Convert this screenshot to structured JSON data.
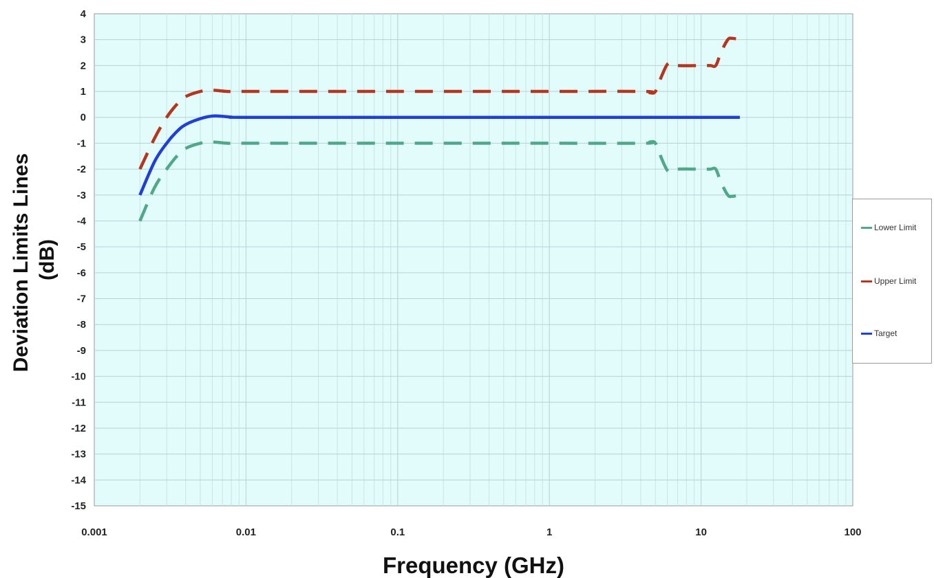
{
  "chart_data": {
    "type": "line",
    "xlabel": "Frequency (GHz)",
    "ylabel_lines": [
      "Deviation Limits Lines",
      "(dB)"
    ],
    "x_scale": "log",
    "xlim": [
      0.001,
      100
    ],
    "ylim": [
      -15,
      4
    ],
    "x_tick_labels": [
      "0.001",
      "0.01",
      "0.1",
      "1",
      "10",
      "100"
    ],
    "x_tick_values": [
      0.001,
      0.01,
      0.1,
      1,
      10,
      100
    ],
    "y_tick_values": [
      4,
      3,
      2,
      1,
      0,
      -1,
      -2,
      -3,
      -4,
      -5,
      -6,
      -7,
      -8,
      -9,
      -10,
      -11,
      -12,
      -13,
      -14,
      -15
    ],
    "grid": true,
    "background": "#e2fbfb",
    "legend_position": "right",
    "series": [
      {
        "name": "Lower Limit",
        "color": "#4fa888",
        "style": "dashed",
        "points": [
          [
            0.002,
            -4
          ],
          [
            0.0025,
            -2.7
          ],
          [
            0.003,
            -2
          ],
          [
            0.0035,
            -1.5
          ],
          [
            0.004,
            -1.2
          ],
          [
            0.005,
            -1
          ],
          [
            0.006,
            -0.95
          ],
          [
            0.0075,
            -1
          ],
          [
            0.01,
            -1
          ],
          [
            0.1,
            -1
          ],
          [
            1,
            -1
          ],
          [
            4.2,
            -1
          ],
          [
            4.6,
            -0.95
          ],
          [
            5,
            -1
          ],
          [
            5.5,
            -1.6
          ],
          [
            6,
            -2.05
          ],
          [
            6.5,
            -2.1
          ],
          [
            7,
            -2
          ],
          [
            10,
            -2
          ],
          [
            11.5,
            -2
          ],
          [
            12.5,
            -2
          ],
          [
            13.5,
            -2.5
          ],
          [
            15,
            -3
          ],
          [
            16,
            -3.05
          ],
          [
            18,
            -3
          ]
        ]
      },
      {
        "name": "Upper Limit",
        "color": "#b5361c",
        "style": "dashed",
        "points": [
          [
            0.002,
            -2
          ],
          [
            0.0025,
            -0.8
          ],
          [
            0.003,
            0
          ],
          [
            0.0035,
            0.5
          ],
          [
            0.004,
            0.8
          ],
          [
            0.005,
            1
          ],
          [
            0.006,
            1.05
          ],
          [
            0.0075,
            1
          ],
          [
            0.01,
            1
          ],
          [
            0.1,
            1
          ],
          [
            1,
            1
          ],
          [
            4.2,
            1
          ],
          [
            4.6,
            0.95
          ],
          [
            5,
            1
          ],
          [
            5.5,
            1.6
          ],
          [
            6,
            2.05
          ],
          [
            6.5,
            2.1
          ],
          [
            7,
            2
          ],
          [
            10,
            2
          ],
          [
            11.5,
            2
          ],
          [
            12.5,
            2
          ],
          [
            13.5,
            2.5
          ],
          [
            15,
            3
          ],
          [
            16,
            3.05
          ],
          [
            18,
            3
          ]
        ]
      },
      {
        "name": "Target",
        "color": "#1f3fd6",
        "style": "solid",
        "points": [
          [
            0.002,
            -3
          ],
          [
            0.0025,
            -1.7
          ],
          [
            0.003,
            -1
          ],
          [
            0.0035,
            -0.55
          ],
          [
            0.004,
            -0.28
          ],
          [
            0.005,
            -0.05
          ],
          [
            0.006,
            0.05
          ],
          [
            0.007,
            0.04
          ],
          [
            0.008,
            0.01
          ],
          [
            0.01,
            0
          ],
          [
            0.1,
            0
          ],
          [
            1,
            0
          ],
          [
            10,
            0
          ],
          [
            18,
            0
          ]
        ]
      }
    ]
  },
  "legend": {
    "items": [
      {
        "label": "Lower Limit",
        "color": "#4fa888"
      },
      {
        "label": "Upper Limit",
        "color": "#b5361c"
      },
      {
        "label": "Target",
        "color": "#1f3fd6"
      }
    ]
  }
}
